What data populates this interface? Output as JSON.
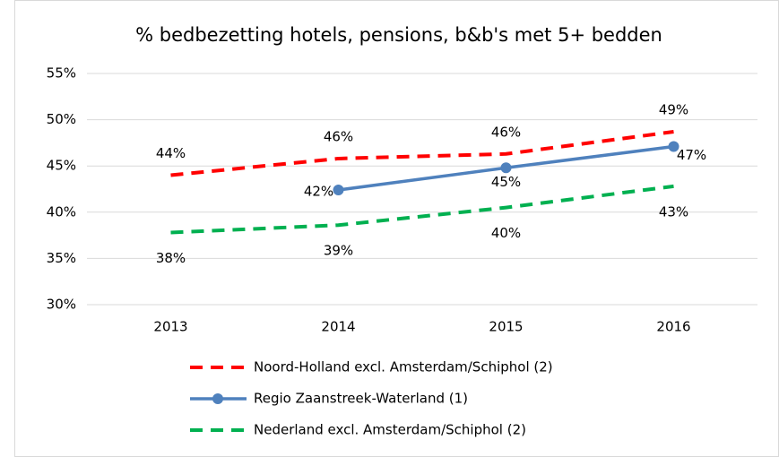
{
  "chart_data": {
    "type": "line",
    "title": "% bedbezetting hotels, pensions, b&b's met 5+ bedden",
    "categories": [
      "2013",
      "2014",
      "2015",
      "2016"
    ],
    "series": [
      {
        "name": "Noord-Holland excl. Amsterdam/Schiphol (2)",
        "color": "#ff0000",
        "dashed": true,
        "markers": false,
        "values": [
          44,
          45.8,
          46.3,
          48.7
        ],
        "value_labels": [
          "44%",
          "46%",
          "46%",
          "49%"
        ]
      },
      {
        "name": "Regio Zaanstreek-Waterland (1)",
        "color": "#4f81bd",
        "dashed": false,
        "markers": true,
        "values": [
          null,
          42.4,
          44.8,
          47.1
        ],
        "value_labels": [
          null,
          "42%",
          "45%",
          "47%"
        ]
      },
      {
        "name": "Nederland excl. Amsterdam/Schiphol (2)",
        "color": "#00b050",
        "dashed": true,
        "markers": false,
        "values": [
          37.8,
          38.6,
          40.5,
          42.8
        ],
        "value_labels": [
          "38%",
          "39%",
          "40%",
          "43%"
        ]
      }
    ],
    "ylim": [
      30,
      55
    ],
    "yticks": [
      {
        "value": 30,
        "label": "30%"
      },
      {
        "value": 35,
        "label": "35%"
      },
      {
        "value": 40,
        "label": "40%"
      },
      {
        "value": 45,
        "label": "45%"
      },
      {
        "value": 50,
        "label": "50%"
      },
      {
        "value": 55,
        "label": "55%"
      }
    ],
    "grid": true,
    "legend": "bottom"
  }
}
